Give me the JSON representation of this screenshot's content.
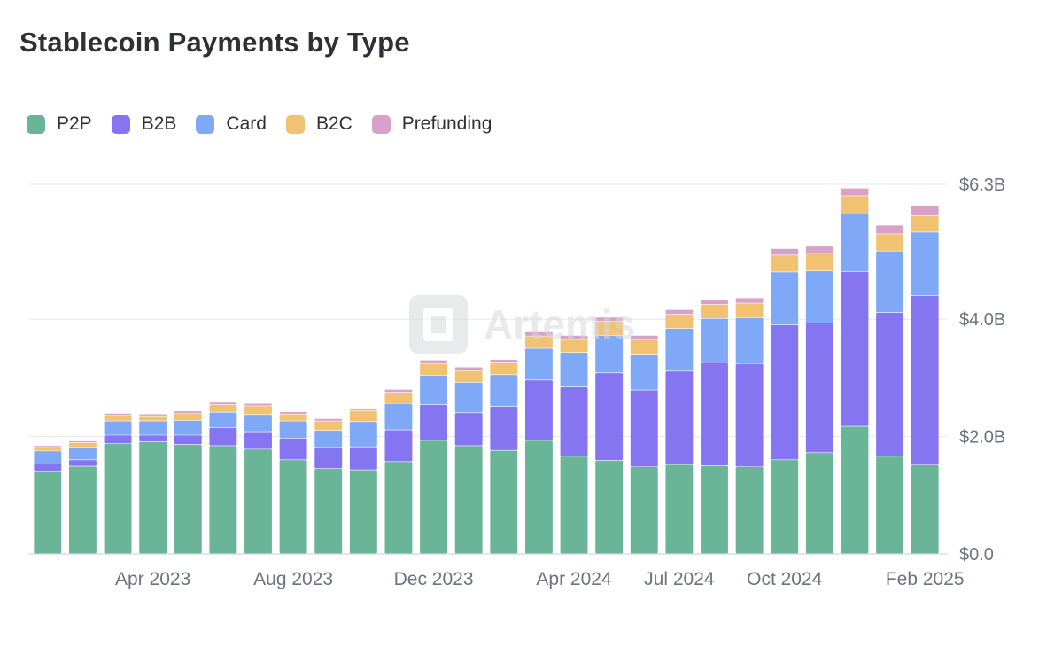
{
  "title": "Stablecoin Payments by Type",
  "legend": [
    {
      "name": "P2P",
      "color": "#6ab497"
    },
    {
      "name": "B2B",
      "color": "#8575f0"
    },
    {
      "name": "Card",
      "color": "#7fa9f6"
    },
    {
      "name": "B2C",
      "color": "#f0c272"
    },
    {
      "name": "Prefunding",
      "color": "#d8a1c9"
    }
  ],
  "watermark": "Artemis",
  "chart_data": {
    "type": "bar",
    "stacked": true,
    "title": "Stablecoin Payments by Type",
    "y_axis_position": "right",
    "ylim": [
      0,
      6.3
    ],
    "y_ticks": [
      {
        "value": 0,
        "label": "$0.0"
      },
      {
        "value": 2.0,
        "label": "$2.0B"
      },
      {
        "value": 4.0,
        "label": "$4.0B"
      },
      {
        "value": 6.3,
        "label": "$6.3B"
      }
    ],
    "x_tick_labels": [
      {
        "index": 3,
        "label": "Apr 2023"
      },
      {
        "index": 7,
        "label": "Aug 2023"
      },
      {
        "index": 11,
        "label": "Dec 2023"
      },
      {
        "index": 15,
        "label": "Apr 2024"
      },
      {
        "index": 18,
        "label": "Jul 2024"
      },
      {
        "index": 21,
        "label": "Oct 2024"
      },
      {
        "index": 25,
        "label": "Feb 2025"
      }
    ],
    "categories": [
      "2023-01",
      "2023-02",
      "2023-03",
      "2023-04",
      "2023-05",
      "2023-06",
      "2023-07",
      "2023-08",
      "2023-09",
      "2023-10",
      "2023-11",
      "2023-12",
      "2024-01",
      "2024-02",
      "2024-03",
      "2024-04",
      "2024-05",
      "2024-06",
      "2024-07",
      "2024-08",
      "2024-09",
      "2024-10",
      "2024-11",
      "2024-12",
      "2025-01",
      "2025-02"
    ],
    "series": [
      {
        "name": "P2P",
        "color": "#6ab497",
        "values": [
          1.41,
          1.49,
          1.88,
          1.91,
          1.86,
          1.84,
          1.78,
          1.6,
          1.45,
          1.43,
          1.57,
          1.93,
          1.84,
          1.76,
          1.93,
          1.66,
          1.59,
          1.48,
          1.52,
          1.5,
          1.48,
          1.6,
          1.72,
          2.17,
          1.66,
          1.51
        ]
      },
      {
        "name": "B2B",
        "color": "#8575f0",
        "values": [
          0.12,
          0.11,
          0.14,
          0.11,
          0.16,
          0.31,
          0.3,
          0.37,
          0.36,
          0.39,
          0.54,
          0.61,
          0.56,
          0.75,
          1.03,
          1.18,
          1.49,
          1.31,
          1.59,
          1.76,
          1.76,
          2.3,
          2.21,
          2.64,
          2.45,
          2.89
        ]
      },
      {
        "name": "Card",
        "color": "#7fa9f6",
        "values": [
          0.22,
          0.21,
          0.24,
          0.24,
          0.25,
          0.26,
          0.29,
          0.29,
          0.29,
          0.43,
          0.45,
          0.5,
          0.52,
          0.54,
          0.54,
          0.59,
          0.64,
          0.61,
          0.73,
          0.75,
          0.78,
          0.9,
          0.89,
          0.98,
          1.05,
          1.08
        ]
      },
      {
        "name": "B2C",
        "color": "#f0c272",
        "values": [
          0.06,
          0.08,
          0.1,
          0.09,
          0.12,
          0.13,
          0.15,
          0.12,
          0.16,
          0.19,
          0.19,
          0.2,
          0.2,
          0.2,
          0.21,
          0.22,
          0.24,
          0.25,
          0.24,
          0.24,
          0.25,
          0.29,
          0.3,
          0.31,
          0.29,
          0.28
        ]
      },
      {
        "name": "Prefunding",
        "color": "#d8a1c9",
        "values": [
          0.03,
          0.03,
          0.03,
          0.03,
          0.04,
          0.04,
          0.04,
          0.04,
          0.04,
          0.04,
          0.05,
          0.06,
          0.06,
          0.06,
          0.07,
          0.07,
          0.07,
          0.07,
          0.08,
          0.08,
          0.09,
          0.11,
          0.12,
          0.13,
          0.15,
          0.18
        ]
      }
    ]
  }
}
